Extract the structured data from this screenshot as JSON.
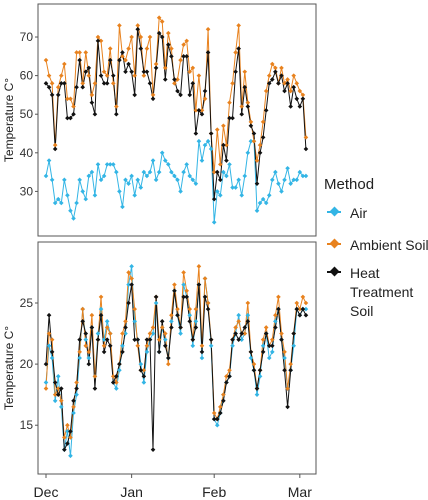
{
  "chart_data": [
    {
      "type": "line",
      "ylabel": "Temperature C°",
      "ylim": [
        20,
        77
      ],
      "yticks": [
        30,
        40,
        50,
        60,
        70
      ],
      "xlim": [
        0,
        86
      ],
      "series": [
        {
          "name": "Air",
          "color": "#33b5e5",
          "values": [
            34,
            38,
            33,
            27,
            28,
            27,
            33,
            29,
            25,
            23,
            27,
            33,
            30,
            28,
            34,
            35,
            29,
            37,
            33,
            34,
            37,
            37,
            37,
            35,
            30,
            26,
            33,
            32,
            34,
            29,
            33,
            31,
            35,
            34,
            35,
            38,
            33,
            35,
            40,
            38,
            37,
            35,
            34,
            33,
            30,
            35,
            37,
            34,
            33,
            32,
            43,
            38,
            42,
            43,
            41,
            22,
            30,
            29,
            35,
            34,
            37,
            31,
            31,
            33,
            29,
            34,
            40,
            43,
            43,
            25,
            27,
            28,
            27,
            29,
            33,
            35,
            32,
            30,
            33,
            36,
            32,
            33,
            33,
            35,
            34,
            34
          ]
        },
        {
          "name": "Ambient Soil",
          "color": "#e8821e",
          "values": [
            64,
            60,
            58,
            42,
            57,
            60,
            63,
            54,
            54,
            52,
            66,
            66,
            58,
            66,
            60,
            55,
            58,
            70,
            69,
            61,
            60,
            67,
            58,
            52,
            73,
            65,
            64,
            67,
            70,
            60,
            73,
            70,
            60,
            67,
            70,
            55,
            63,
            75,
            74,
            62,
            71,
            67,
            58,
            59,
            64,
            68,
            69,
            61,
            62,
            51,
            60,
            51,
            54,
            72,
            45,
            35,
            46,
            37,
            47,
            42,
            53,
            58,
            66,
            73,
            52,
            61,
            53,
            48,
            43,
            38,
            42,
            48,
            56,
            60,
            63,
            62,
            58,
            62,
            58,
            59,
            56,
            60,
            58,
            56,
            55,
            44
          ]
        },
        {
          "name": "Heat Treatment Soil",
          "color": "#111111",
          "values": [
            58,
            57,
            55,
            41,
            55,
            58,
            58,
            49,
            49,
            50,
            57,
            64,
            57,
            61,
            62,
            53,
            50,
            69,
            60,
            58,
            58,
            64,
            60,
            50,
            64,
            66,
            61,
            63,
            61,
            55,
            72,
            67,
            61,
            61,
            58,
            54,
            62,
            71,
            70,
            59,
            68,
            65,
            59,
            56,
            55,
            65,
            65,
            55,
            58,
            45,
            51,
            50,
            56,
            66,
            45,
            28,
            35,
            33,
            42,
            38,
            49,
            49,
            61,
            67,
            50,
            57,
            52,
            47,
            45,
            32,
            40,
            44,
            51,
            58,
            59,
            61,
            58,
            60,
            56,
            58,
            52,
            57,
            54,
            52,
            54,
            41
          ]
        }
      ]
    },
    {
      "type": "line",
      "ylabel": "Temperature C°",
      "ylim": [
        11.5,
        29.5
      ],
      "yticks": [
        15,
        20,
        25
      ],
      "xlim": [
        0,
        86
      ],
      "xticks": [
        {
          "label": "Dec",
          "x": 0
        },
        {
          "label": "Jan",
          "x": 28
        },
        {
          "label": "Feb",
          "x": 55
        },
        {
          "label": "Mar",
          "x": 83
        }
      ],
      "series": [
        {
          "name": "Air",
          "color": "#33b5e5",
          "values": [
            18.5,
            21.5,
            20.5,
            17.0,
            19.0,
            16.5,
            13.0,
            14.5,
            12.5,
            16.0,
            17.5,
            20.5,
            24.5,
            22.0,
            20.5,
            23.0,
            19.0,
            22.5,
            24.5,
            22.0,
            23.5,
            22.5,
            18.5,
            18.0,
            19.5,
            21.5,
            22.5,
            26.5,
            28.0,
            23.5,
            22.0,
            20.0,
            18.5,
            21.0,
            22.0,
            22.5,
            25.0,
            21.0,
            23.0,
            22.0,
            20.5,
            23.5,
            26.0,
            24.0,
            22.5,
            26.5,
            25.5,
            24.0,
            21.5,
            23.5,
            26.5,
            20.5,
            27.0,
            25.0,
            21.5,
            15.5,
            15.0,
            16.0,
            17.5,
            18.5,
            19.0,
            21.5,
            22.5,
            24.0,
            22.0,
            22.5,
            24.0,
            20.5,
            19.5,
            17.5,
            19.0,
            21.5,
            22.5,
            20.5,
            21.0,
            23.5,
            24.5,
            22.0,
            20.5,
            18.0,
            19.5,
            21.5,
            24.5,
            24.0,
            24.5,
            24.5
          ]
        },
        {
          "name": "Ambient Soil",
          "color": "#e8821e",
          "values": [
            18.0,
            22.5,
            22.0,
            17.5,
            18.0,
            17.0,
            14.0,
            15.0,
            14.0,
            16.5,
            18.5,
            21.0,
            24.5,
            21.5,
            21.0,
            24.0,
            19.0,
            22.0,
            25.5,
            21.5,
            23.0,
            22.5,
            19.0,
            18.5,
            20.0,
            22.5,
            23.5,
            27.5,
            27.0,
            24.5,
            21.5,
            19.5,
            19.5,
            21.5,
            22.5,
            23.0,
            25.5,
            22.0,
            23.0,
            22.5,
            20.0,
            24.0,
            26.5,
            24.5,
            23.0,
            27.5,
            26.0,
            24.5,
            22.0,
            24.5,
            28.0,
            21.5,
            27.0,
            25.0,
            22.0,
            16.0,
            15.5,
            16.5,
            17.5,
            19.0,
            19.5,
            22.0,
            23.0,
            23.5,
            22.5,
            22.5,
            25.0,
            21.0,
            20.0,
            18.0,
            19.5,
            22.0,
            23.0,
            21.5,
            22.0,
            24.0,
            25.5,
            22.5,
            21.0,
            18.0,
            20.0,
            22.5,
            25.0,
            24.5,
            25.5,
            25.0
          ]
        },
        {
          "name": "Heat Treatment Soil",
          "color": "#111111",
          "values": [
            20.0,
            24.0,
            21.0,
            18.5,
            17.5,
            18.0,
            13.0,
            13.5,
            14.5,
            17.0,
            18.0,
            22.0,
            23.5,
            22.5,
            20.0,
            23.0,
            18.0,
            22.0,
            24.0,
            21.0,
            22.0,
            21.5,
            18.5,
            19.0,
            20.0,
            21.0,
            23.0,
            25.0,
            26.5,
            22.0,
            22.0,
            19.5,
            19.0,
            22.0,
            22.0,
            13.0,
            25.5,
            21.0,
            23.5,
            21.5,
            20.5,
            23.0,
            26.0,
            24.0,
            23.0,
            25.5,
            25.5,
            23.5,
            22.0,
            23.0,
            26.5,
            21.0,
            25.5,
            24.5,
            22.0,
            15.5,
            15.5,
            16.0,
            17.0,
            18.5,
            19.0,
            22.0,
            22.5,
            22.0,
            22.5,
            23.0,
            23.5,
            21.0,
            19.5,
            18.0,
            19.5,
            21.0,
            22.5,
            21.5,
            21.5,
            23.0,
            24.5,
            22.0,
            19.5,
            16.5,
            19.5,
            22.5,
            24.5,
            24.0,
            24.5,
            24.0
          ]
        }
      ]
    }
  ],
  "legend": {
    "title": "Method",
    "items": [
      {
        "label": "Air",
        "color": "#33b5e5"
      },
      {
        "label": "Ambient Soil",
        "color": "#e8821e"
      },
      {
        "label": "Heat Treatment Soil",
        "color": "#111111"
      }
    ]
  }
}
